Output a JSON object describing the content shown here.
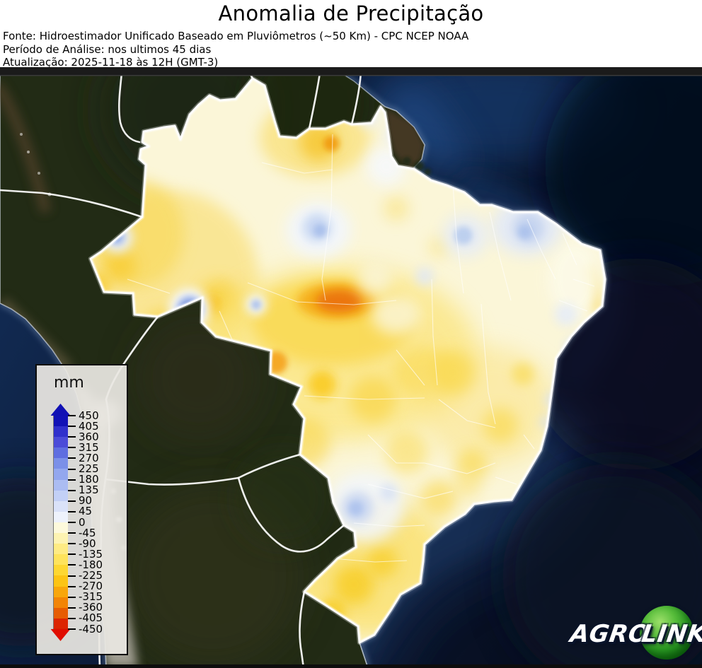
{
  "header": {
    "title": "Anomalia de Precipitação",
    "source": "Fonte: Hidroestimador Unificado Baseado em Pluviômetros (~50 Km) - CPC NCEP NOAA",
    "period": "Período de Análise: nos ultimos 45 dias",
    "updated": "Atualização: 2025-11-18 às 12H (GMT-3)"
  },
  "legend": {
    "unit": "mm",
    "tick_values": [
      450,
      405,
      360,
      315,
      270,
      225,
      180,
      135,
      90,
      45,
      0,
      -45,
      -90,
      -135,
      -180,
      -225,
      -270,
      -315,
      -360,
      -405,
      -450
    ],
    "segment_colors": [
      "#1212b6",
      "#3030cc",
      "#4b4bd8",
      "#5f6ee0",
      "#7b90e8",
      "#93a7ee",
      "#abbcf2",
      "#c3d0f6",
      "#dae2f9",
      "#eef2fc",
      "#fdf9dc",
      "#fdf3b2",
      "#feeb84",
      "#fee35c",
      "#fdd732",
      "#fcc414",
      "#f8a60b",
      "#f28406",
      "#e65c03",
      "#dc2502"
    ],
    "arrow_top_color": "#1111b4",
    "arrow_bottom_color": "#e00d00"
  },
  "logo": {
    "text_primary": "AGRO",
    "text_secondary": "LINK",
    "circle_color_hex": "#2b9a23"
  },
  "map_colors": {
    "ocean_deep": "#070e20",
    "ocean_shelf": "#1c3a66",
    "land_dark_green": "#222b15",
    "andes_gray": "#b7b2a8",
    "anomaly_base_cream": "#fbf6d8",
    "anomaly_negative_strong": "#eb7307",
    "anomaly_positive_strong": "#1e33b9",
    "border_white": "#ffffff"
  }
}
